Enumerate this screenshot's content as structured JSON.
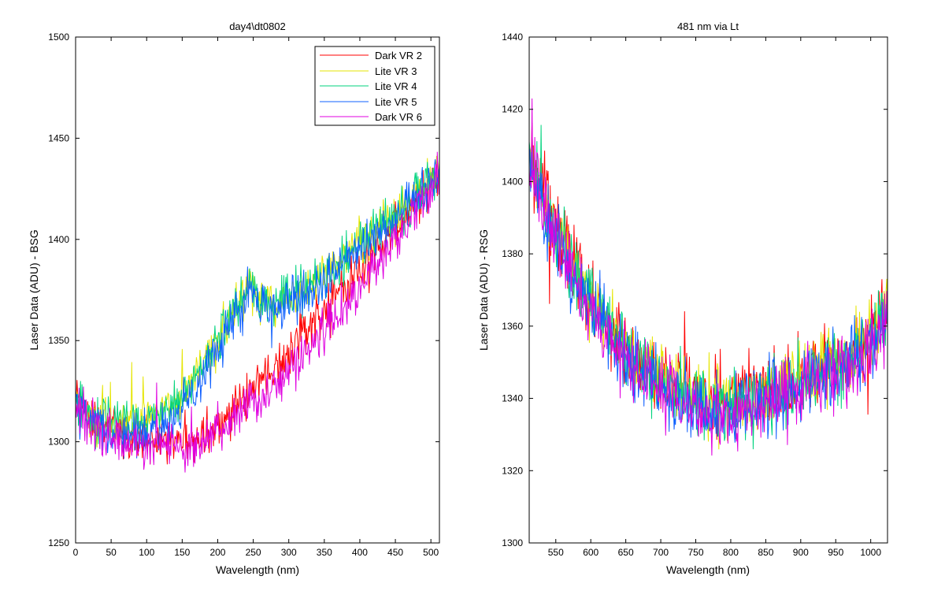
{
  "chart_data": [
    {
      "type": "line",
      "title": "day4\\dt0802",
      "xlabel": "Wavelength (nm)",
      "ylabel": "Laser Data (ADU) - BSG",
      "xlim": [
        0,
        512
      ],
      "ylim": [
        1250,
        1500
      ],
      "xticks": [
        0,
        50,
        100,
        150,
        200,
        250,
        300,
        350,
        400,
        450,
        500
      ],
      "yticks": [
        1250,
        1300,
        1350,
        1400,
        1450,
        1500
      ],
      "xtick_labels": [
        "0",
        "50",
        "100",
        "150",
        "200",
        "250",
        "300",
        "350",
        "400",
        "450",
        "500"
      ],
      "ytick_labels": [
        "1250",
        "1300",
        "1350",
        "1400",
        "1450",
        "1500"
      ],
      "legend": "top-right",
      "noise_amplitude": 8,
      "series": [
        {
          "name": "Dark VR 2",
          "color": "#ff0000",
          "x": [
            0,
            10,
            20,
            40,
            60,
            80,
            100,
            120,
            140,
            160,
            180,
            200,
            220,
            240,
            250,
            260,
            280,
            300,
            320,
            350,
            380,
            400,
            420,
            450,
            480,
            500,
            512
          ],
          "y": [
            1322,
            1318,
            1314,
            1308,
            1305,
            1303,
            1302,
            1300,
            1300,
            1301,
            1304,
            1308,
            1314,
            1322,
            1326,
            1330,
            1336,
            1344,
            1354,
            1366,
            1376,
            1385,
            1393,
            1405,
            1418,
            1428,
            1432
          ]
        },
        {
          "name": "Lite VR 3",
          "color": "#e5e500",
          "x": [
            0,
            10,
            20,
            40,
            60,
            80,
            100,
            120,
            140,
            160,
            180,
            200,
            210,
            220,
            235,
            245,
            250,
            260,
            280,
            300,
            320,
            350,
            380,
            400,
            420,
            450,
            480,
            500,
            512
          ],
          "y": [
            1322,
            1316,
            1313,
            1310,
            1309,
            1310,
            1312,
            1315,
            1320,
            1328,
            1338,
            1350,
            1358,
            1367,
            1370,
            1380,
            1378,
            1370,
            1370,
            1372,
            1376,
            1384,
            1392,
            1398,
            1404,
            1412,
            1422,
            1430,
            1436
          ]
        },
        {
          "name": "Lite VR 4",
          "color": "#00d37e",
          "x": [
            0,
            10,
            20,
            40,
            60,
            80,
            100,
            120,
            140,
            160,
            180,
            200,
            210,
            220,
            235,
            245,
            250,
            260,
            280,
            300,
            320,
            350,
            380,
            400,
            420,
            450,
            480,
            500,
            512
          ],
          "y": [
            1321,
            1315,
            1312,
            1309,
            1308,
            1309,
            1311,
            1314,
            1319,
            1327,
            1337,
            1349,
            1357,
            1366,
            1369,
            1379,
            1377,
            1369,
            1369,
            1371,
            1375,
            1383,
            1391,
            1397,
            1403,
            1411,
            1421,
            1429,
            1435
          ]
        },
        {
          "name": "Lite VR 5",
          "color": "#1060ff",
          "x": [
            0,
            10,
            20,
            40,
            60,
            80,
            100,
            120,
            140,
            160,
            180,
            200,
            210,
            220,
            235,
            245,
            250,
            260,
            280,
            300,
            320,
            350,
            380,
            400,
            420,
            450,
            480,
            500,
            512
          ],
          "y": [
            1320,
            1314,
            1311,
            1306,
            1304,
            1303,
            1304,
            1308,
            1314,
            1323,
            1333,
            1345,
            1352,
            1362,
            1366,
            1376,
            1374,
            1366,
            1366,
            1368,
            1373,
            1380,
            1389,
            1395,
            1401,
            1409,
            1419,
            1427,
            1433
          ]
        },
        {
          "name": "Dark VR 6",
          "color": "#e000e0",
          "x": [
            0,
            10,
            20,
            40,
            60,
            80,
            100,
            120,
            140,
            160,
            180,
            200,
            220,
            240,
            250,
            260,
            280,
            300,
            320,
            350,
            380,
            400,
            420,
            450,
            480,
            500,
            512
          ],
          "y": [
            1320,
            1315,
            1311,
            1304,
            1300,
            1298,
            1297,
            1296,
            1296,
            1297,
            1300,
            1304,
            1310,
            1317,
            1320,
            1322,
            1327,
            1334,
            1343,
            1356,
            1367,
            1377,
            1386,
            1400,
            1414,
            1424,
            1430
          ]
        }
      ]
    },
    {
      "type": "line",
      "title": "481 nm via Lt",
      "xlabel": "Wavelength (nm)",
      "ylabel": "Laser Data (ADU) - RSG",
      "xlim": [
        512,
        1024
      ],
      "ylim": [
        1300,
        1440
      ],
      "xticks": [
        550,
        600,
        650,
        700,
        750,
        800,
        850,
        900,
        950,
        1000
      ],
      "yticks": [
        1300,
        1320,
        1340,
        1360,
        1380,
        1400,
        1420,
        1440
      ],
      "xtick_labels": [
        "550",
        "600",
        "650",
        "700",
        "750",
        "800",
        "850",
        "900",
        "950",
        "1000"
      ],
      "ytick_labels": [
        "1300",
        "1320",
        "1340",
        "1360",
        "1380",
        "1400",
        "1420",
        "1440"
      ],
      "noise_amplitude": 7,
      "series": [
        {
          "color": "#ff0000",
          "x": [
            512,
            530,
            550,
            575,
            600,
            625,
            650,
            675,
            700,
            725,
            750,
            775,
            800,
            825,
            850,
            875,
            900,
            925,
            950,
            975,
            1000,
            1024
          ],
          "y": [
            1408,
            1398,
            1387,
            1377,
            1368,
            1361,
            1355,
            1350,
            1346,
            1343,
            1341,
            1340,
            1340,
            1341,
            1343,
            1345,
            1347,
            1349,
            1351,
            1353,
            1357,
            1365
          ]
        },
        {
          "color": "#e5e500",
          "x": [
            512,
            530,
            550,
            575,
            600,
            625,
            650,
            675,
            700,
            725,
            750,
            775,
            800,
            825,
            850,
            875,
            900,
            925,
            950,
            975,
            1000,
            1024
          ],
          "y": [
            1407,
            1397,
            1386,
            1376,
            1367,
            1360,
            1354,
            1349,
            1345,
            1342,
            1340,
            1339,
            1339,
            1340,
            1342,
            1344,
            1346,
            1348,
            1350,
            1352,
            1356,
            1364
          ]
        },
        {
          "color": "#00d37e",
          "x": [
            512,
            530,
            550,
            575,
            600,
            625,
            650,
            675,
            700,
            725,
            750,
            775,
            800,
            825,
            850,
            875,
            900,
            925,
            950,
            975,
            1000,
            1024
          ],
          "y": [
            1406,
            1396,
            1385,
            1375,
            1366,
            1359,
            1353,
            1348,
            1344,
            1341,
            1339,
            1338,
            1338,
            1339,
            1341,
            1343,
            1345,
            1347,
            1349,
            1351,
            1355,
            1363
          ]
        },
        {
          "color": "#1060ff",
          "x": [
            512,
            530,
            550,
            575,
            600,
            625,
            650,
            675,
            700,
            725,
            750,
            775,
            800,
            825,
            850,
            875,
            900,
            925,
            950,
            975,
            1000,
            1024
          ],
          "y": [
            1405,
            1395,
            1384,
            1374,
            1365,
            1358,
            1352,
            1347,
            1343,
            1340,
            1338,
            1337,
            1337,
            1338,
            1340,
            1342,
            1344,
            1346,
            1348,
            1350,
            1354,
            1362
          ]
        },
        {
          "color": "#e000e0",
          "x": [
            512,
            530,
            550,
            575,
            600,
            625,
            650,
            675,
            700,
            725,
            750,
            775,
            800,
            825,
            850,
            875,
            900,
            925,
            950,
            975,
            1000,
            1024
          ],
          "y": [
            1404,
            1394,
            1383,
            1373,
            1364,
            1357,
            1351,
            1346,
            1342,
            1339,
            1337,
            1336,
            1336,
            1337,
            1339,
            1341,
            1343,
            1345,
            1347,
            1349,
            1353,
            1361
          ]
        }
      ]
    }
  ]
}
